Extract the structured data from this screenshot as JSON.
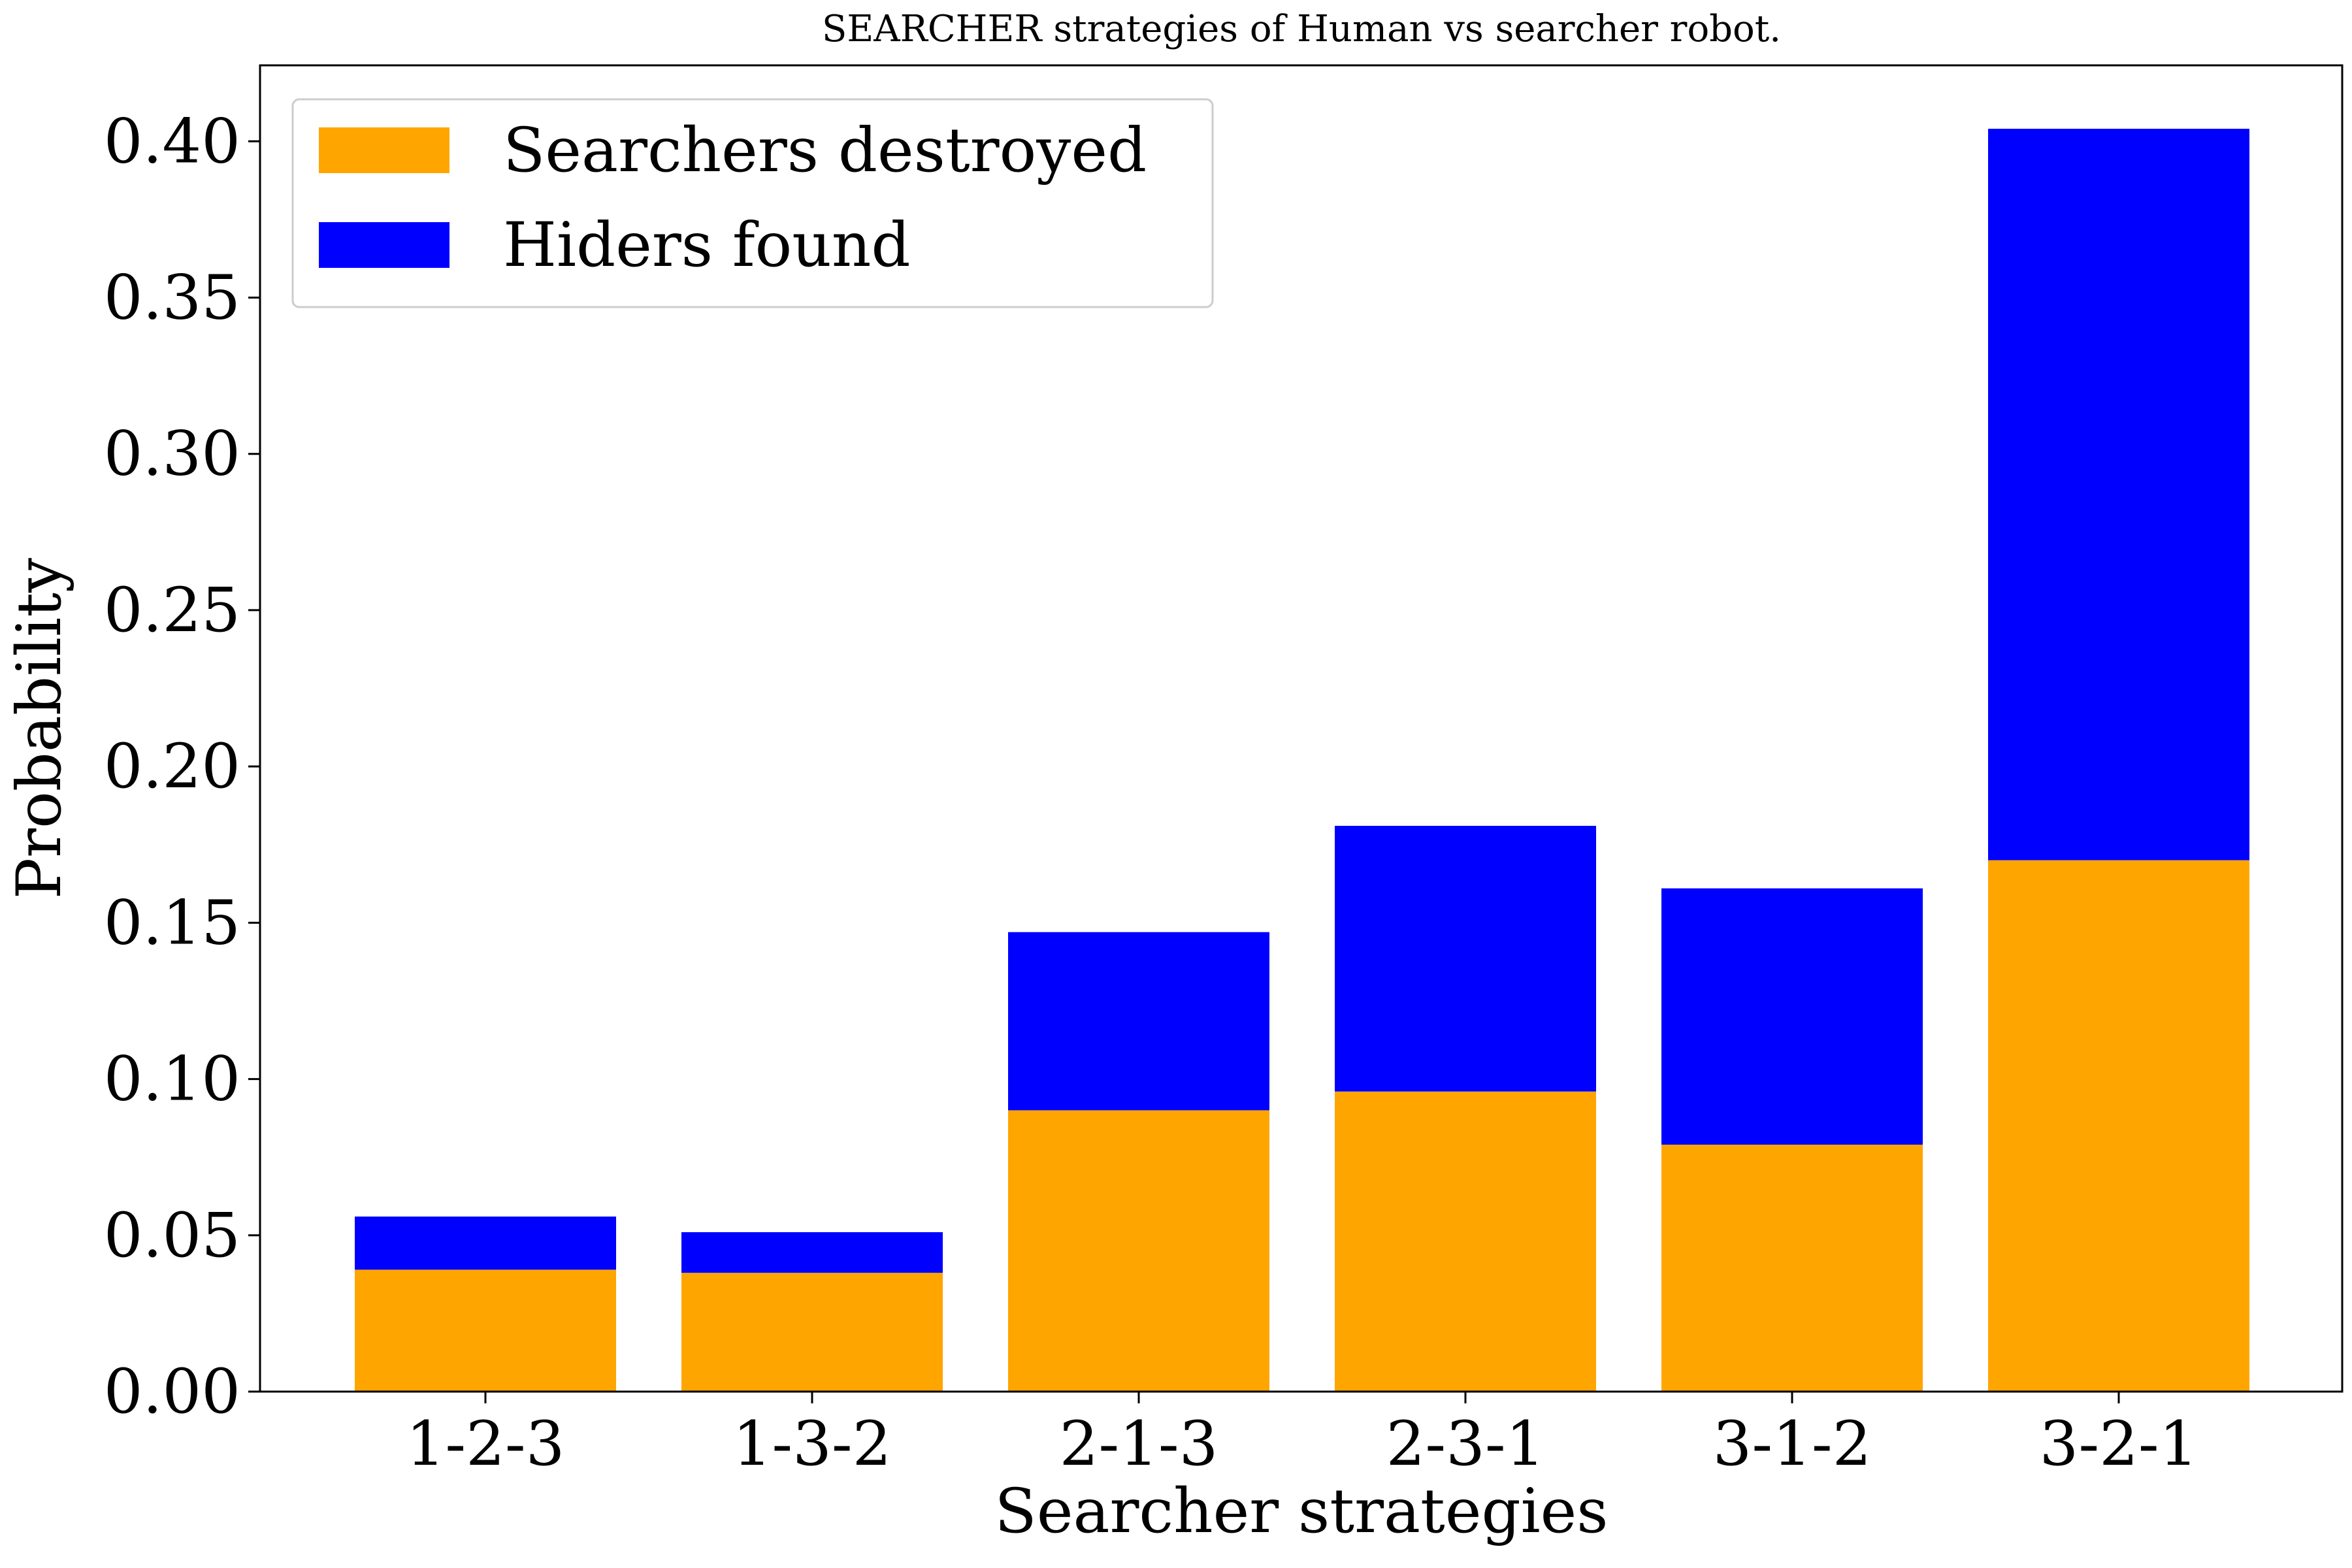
{
  "chart_data": {
    "type": "bar",
    "stacked": true,
    "title": "SEARCHER strategies of Human vs searcher robot.",
    "xlabel": "Searcher strategies",
    "ylabel": "Probability",
    "categories": [
      "1-2-3",
      "1-3-2",
      "2-1-3",
      "2-3-1",
      "3-1-2",
      "3-2-1"
    ],
    "series": [
      {
        "name": "Searchers destroyed",
        "color": "#FFA500",
        "values": [
          0.039,
          0.038,
          0.09,
          0.096,
          0.079,
          0.17
        ]
      },
      {
        "name": "Hiders found",
        "color": "#0000FF",
        "values": [
          0.017,
          0.013,
          0.057,
          0.085,
          0.082,
          0.234
        ]
      }
    ],
    "ylim": [
      0,
      0.4243
    ],
    "yticks": [
      "0.00",
      "0.05",
      "0.10",
      "0.15",
      "0.20",
      "0.25",
      "0.30",
      "0.35",
      "0.40"
    ],
    "legend_position": "top-left",
    "grid": false
  }
}
